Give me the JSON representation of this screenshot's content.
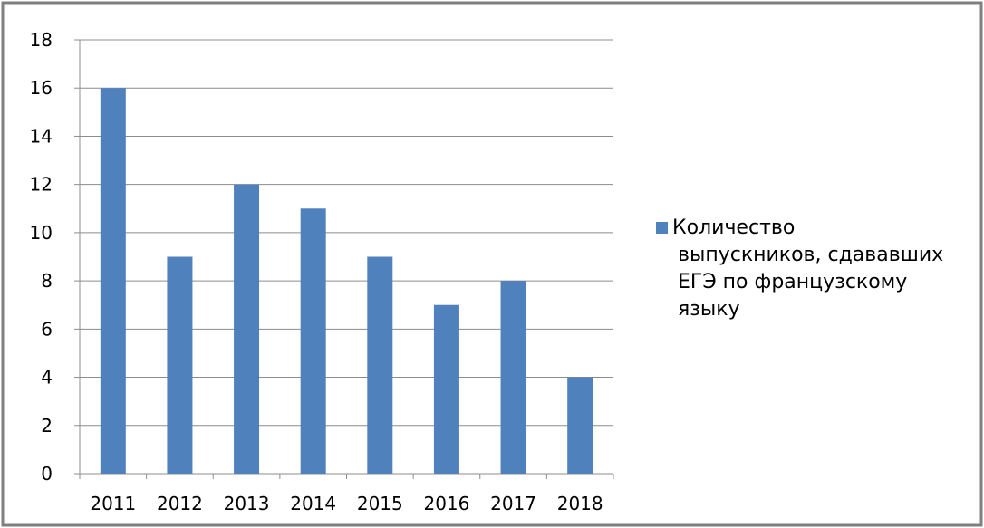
{
  "chart_data": {
    "type": "bar",
    "categories": [
      "2011",
      "2012",
      "2013",
      "2014",
      "2015",
      "2016",
      "2017",
      "2018"
    ],
    "series": [
      {
        "name": "Количество выпускников, сдававших ЕГЭ по французскому языку",
        "values": [
          16,
          9,
          12,
          11,
          9,
          7,
          8,
          4
        ]
      }
    ],
    "legend_lines": [
      "Количество",
      "выпускников, сдававших",
      "ЕГЭ по французскому",
      "языку"
    ],
    "title": "",
    "xlabel": "",
    "ylabel": "",
    "ylim": [
      0,
      18
    ],
    "yticks": [
      "0",
      "2",
      "4",
      "6",
      "8",
      "10",
      "12",
      "14",
      "16",
      "18"
    ],
    "grid": true,
    "legend_position": "right",
    "colors": {
      "bar": "#4F81BD",
      "grid": "#8C8C8C",
      "frame": "#7F7F7F"
    }
  }
}
